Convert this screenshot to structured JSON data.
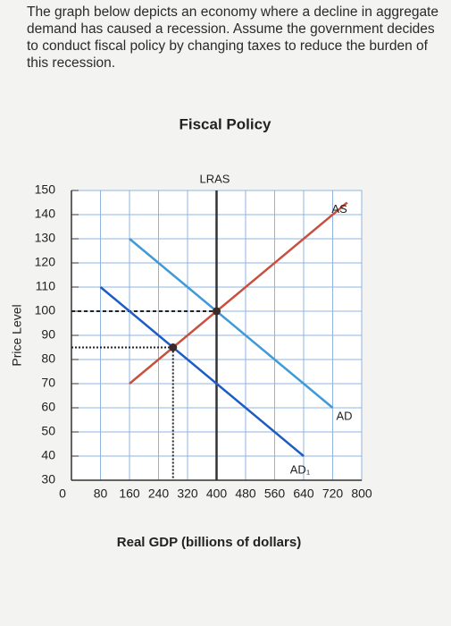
{
  "question": "The graph below depicts an economy where a decline in aggregate demand has caused a recession. Assume the government decides to conduct fiscal policy by changing taxes to reduce the burden of this recession.",
  "chart_data": {
    "type": "line",
    "title": "Fiscal Policy",
    "x_label": "Real GDP (billions of dollars)",
    "y_label": "Price Level",
    "xlim": [
      0,
      800
    ],
    "ylim": [
      30,
      150
    ],
    "xticks": [
      0,
      80,
      160,
      240,
      320,
      400,
      480,
      560,
      640,
      720,
      800
    ],
    "yticks": [
      30,
      40,
      50,
      60,
      70,
      80,
      90,
      100,
      110,
      120,
      130,
      140,
      150
    ],
    "grid": true,
    "series": [
      {
        "name": "LRAS",
        "color": "#333333",
        "x": [
          400,
          400
        ],
        "values": [
          30,
          150
        ]
      },
      {
        "name": "AS",
        "color": "#c8503f",
        "x": [
          160,
          760
        ],
        "values": [
          70,
          145
        ]
      },
      {
        "name": "AD",
        "color": "#3f9ad8",
        "x": [
          160,
          720
        ],
        "values": [
          130,
          60
        ]
      },
      {
        "name": "AD₁",
        "color": "#1d5cc4",
        "x": [
          80,
          640
        ],
        "values": [
          110,
          40
        ]
      }
    ],
    "markers": [
      {
        "x": 400,
        "y": 100
      },
      {
        "x": 280,
        "y": 85
      }
    ],
    "marker_color": "#3a2a2a"
  }
}
